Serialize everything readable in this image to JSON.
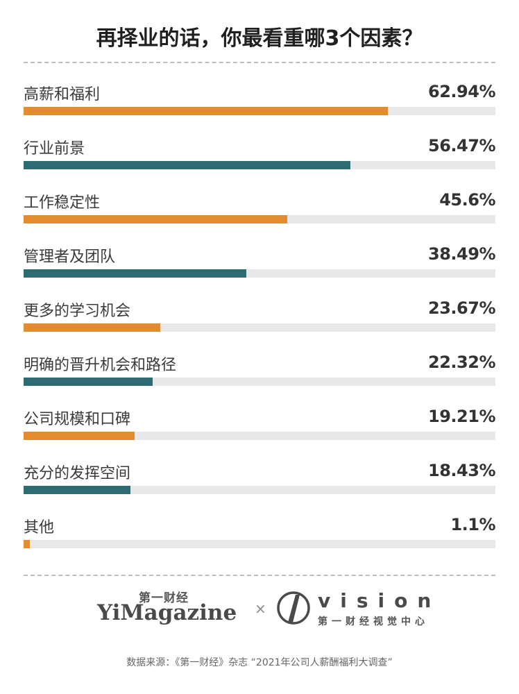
{
  "chart_data": {
    "type": "bar",
    "orientation": "horizontal",
    "title": "再择业的话，你最看重哪3个因素？",
    "categories": [
      "高薪和福利",
      "行业前景",
      "工作稳定性",
      "管理者及团队",
      "更多的学习机会",
      "明确的晋升机会和路径",
      "公司规模和口碑",
      "充分的发挥空间",
      "其他"
    ],
    "values": [
      62.94,
      56.47,
      45.6,
      38.49,
      23.67,
      22.32,
      19.21,
      18.43,
      1.1
    ],
    "value_labels": [
      "62.94%",
      "56.47%",
      "45.6%",
      "38.49%",
      "23.67%",
      "22.32%",
      "19.21%",
      "18.43%",
      "1.1%"
    ],
    "xlim": [
      0,
      81.5
    ],
    "colors": [
      "#e38b2f",
      "#2e6c73"
    ],
    "grid": false,
    "legend": "none"
  },
  "footer": {
    "logo_cn": "第一财经",
    "logo_en": "YiMagazine",
    "times": "×",
    "vision_word": "vision",
    "vision_sub": "第一财经视觉中心",
    "source": "数据来源：《第一财经》杂志 “2021年公司人薪酬福利大调查”"
  }
}
